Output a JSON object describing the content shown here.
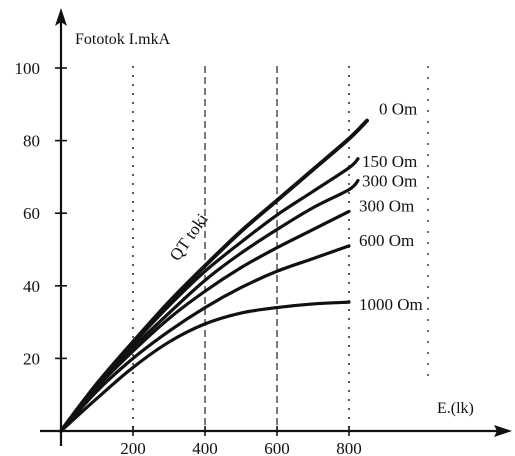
{
  "chart_data": {
    "type": "line",
    "ylabel": "Fototok I.mkA",
    "xlabel": "E.(lk)",
    "xlim": [
      0,
      1100
    ],
    "ylim": [
      0,
      100
    ],
    "x_ticks": [
      200,
      400,
      600,
      800
    ],
    "y_ticks": [
      20,
      40,
      60,
      80,
      100
    ],
    "grid": "dashed vertical lines at 400 and 600, dotted at 200 and 800",
    "annotation": "QT toki",
    "color": "#111111",
    "series": [
      {
        "name": "0 Om",
        "x": [
          0,
          100,
          200,
          300,
          400,
          500,
          600,
          700,
          800,
          850
        ],
        "y": [
          0,
          13,
          24.5,
          35.5,
          45.5,
          55,
          63.5,
          72,
          80.5,
          85.5
        ]
      },
      {
        "name": "150 Om",
        "x": [
          0,
          100,
          200,
          300,
          400,
          500,
          600,
          700,
          800,
          825
        ],
        "y": [
          0,
          13,
          24,
          34.5,
          44,
          52,
          59.5,
          66,
          72.5,
          75
        ]
      },
      {
        "name": "300 Om",
        "x": [
          0,
          100,
          200,
          300,
          400,
          500,
          600,
          700,
          800,
          825
        ],
        "y": [
          0,
          12.5,
          23,
          32.5,
          41.5,
          49,
          55.5,
          61.5,
          66.5,
          69
        ]
      },
      {
        "name": "300 Om",
        "x": [
          0,
          100,
          200,
          300,
          400,
          500,
          600,
          700,
          800
        ],
        "y": [
          0,
          12,
          22,
          31,
          38.5,
          45,
          50.5,
          55.5,
          60.5
        ]
      },
      {
        "name": "600 Om",
        "x": [
          0,
          100,
          200,
          300,
          400,
          500,
          600,
          700,
          800
        ],
        "y": [
          0,
          11,
          20,
          27.5,
          34,
          39.5,
          44,
          47.5,
          51
        ]
      },
      {
        "name": "1000 Om",
        "x": [
          0,
          100,
          200,
          300,
          400,
          500,
          600,
          700,
          800
        ],
        "y": [
          0,
          9,
          17.5,
          24.5,
          29.5,
          32.5,
          34,
          35,
          35.5
        ]
      }
    ]
  }
}
